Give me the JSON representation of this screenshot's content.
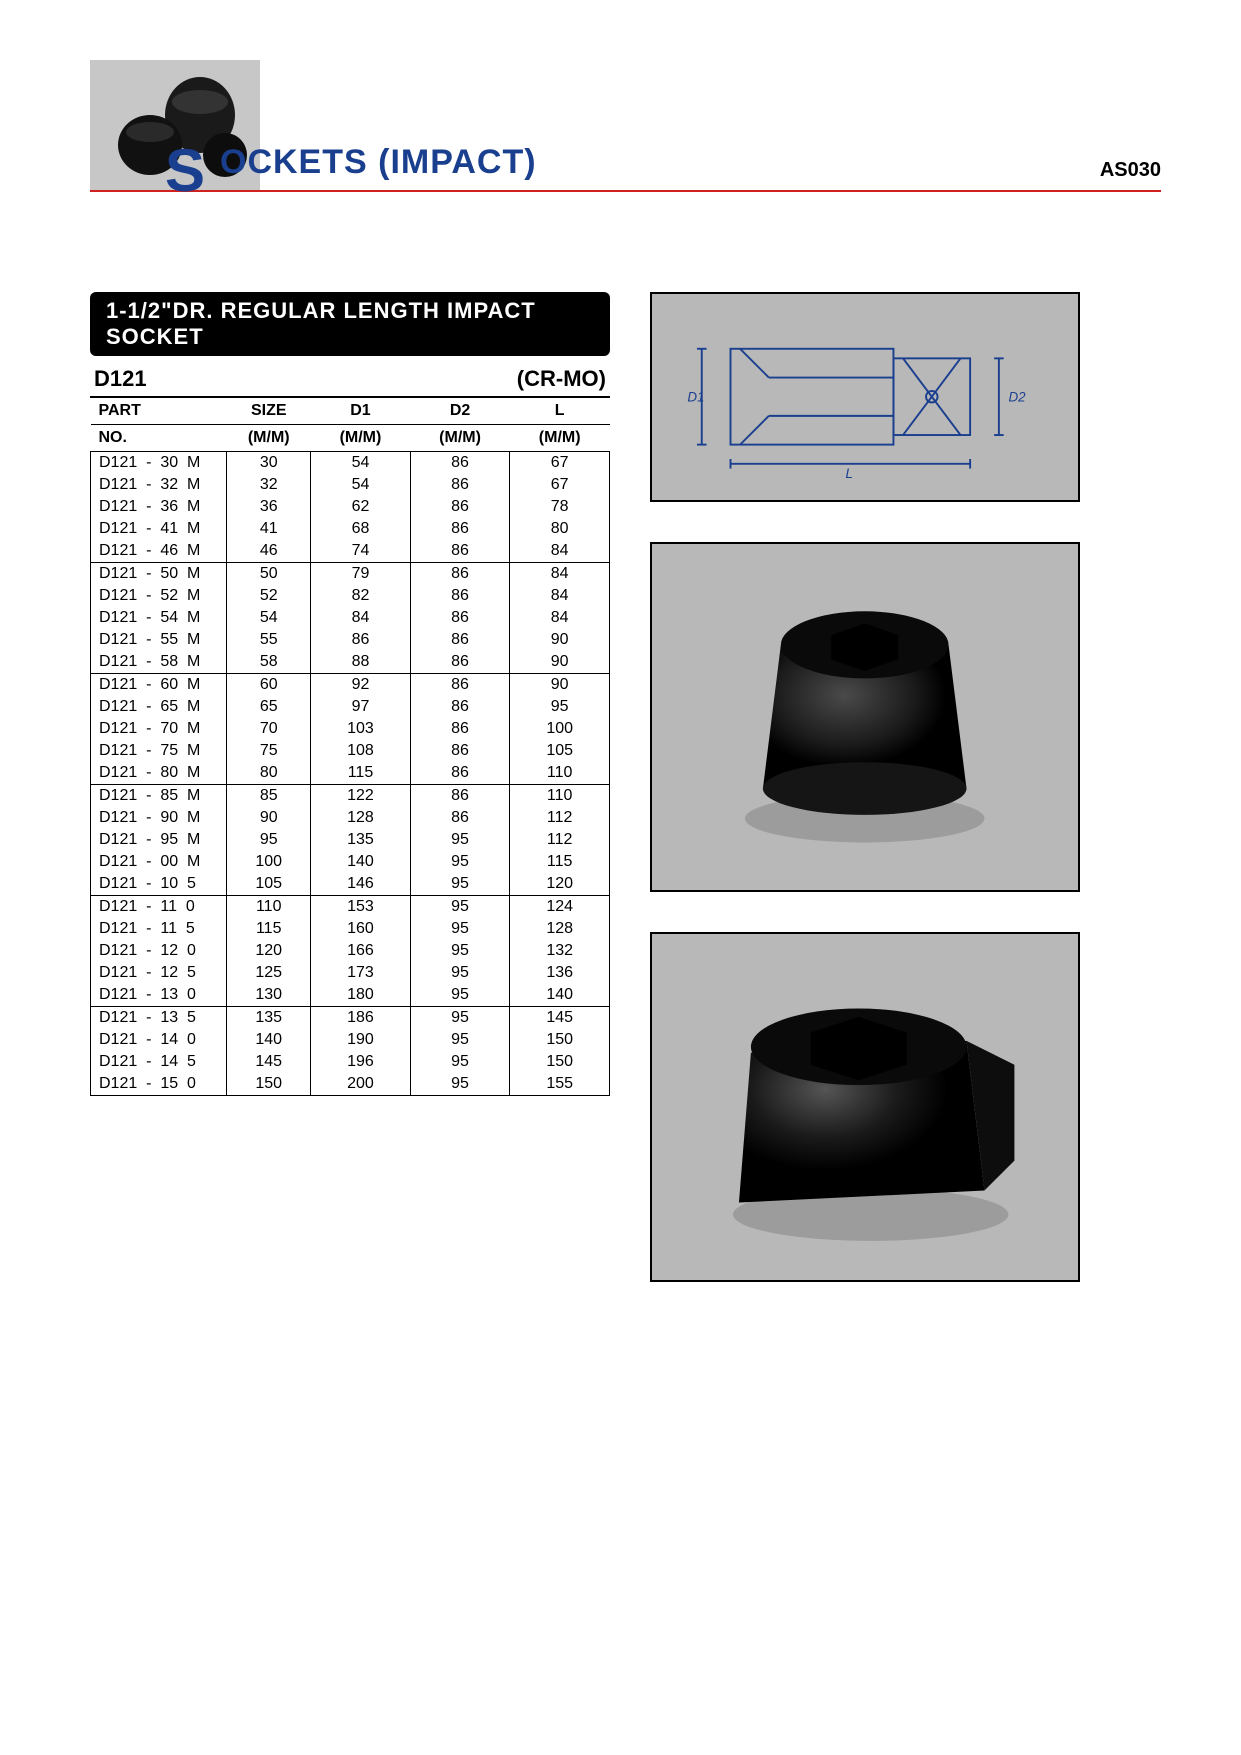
{
  "page_code": "AS030",
  "category_title": "OCKETS (IMPACT)",
  "category_prefix": "S",
  "section_title": "1-1/2\"DR. REGULAR LENGTH IMPACT SOCKET",
  "model_code": "D121",
  "material": "(CR-MO)",
  "colors": {
    "accent_red": "#d02020",
    "brand_blue": "#1a3f8f",
    "figure_bg": "#b8b8b8",
    "logo_bg": "#c7c7c7",
    "text": "#000000",
    "bg": "#ffffff"
  },
  "diagram_labels": {
    "d1": "D1",
    "d2": "D2",
    "l": "L"
  },
  "table": {
    "columns": [
      {
        "key": "part",
        "label1": "PART",
        "label2": "NO."
      },
      {
        "key": "size",
        "label1": "SIZE",
        "label2": "(M/M)"
      },
      {
        "key": "d1",
        "label1": "D1",
        "label2": "(M/M)"
      },
      {
        "key": "d2",
        "label1": "D2",
        "label2": "(M/M)"
      },
      {
        "key": "l",
        "label1": "L",
        "label2": "(M/M)"
      }
    ],
    "group_size": 5,
    "rows": [
      {
        "part": "D121  -  30  M",
        "size": 30,
        "d1": 54,
        "d2": 86,
        "l": 67
      },
      {
        "part": "D121  -  32  M",
        "size": 32,
        "d1": 54,
        "d2": 86,
        "l": 67
      },
      {
        "part": "D121  -  36  M",
        "size": 36,
        "d1": 62,
        "d2": 86,
        "l": 78
      },
      {
        "part": "D121  -  41  M",
        "size": 41,
        "d1": 68,
        "d2": 86,
        "l": 80
      },
      {
        "part": "D121  -  46  M",
        "size": 46,
        "d1": 74,
        "d2": 86,
        "l": 84
      },
      {
        "part": "D121  -  50  M",
        "size": 50,
        "d1": 79,
        "d2": 86,
        "l": 84
      },
      {
        "part": "D121  -  52  M",
        "size": 52,
        "d1": 82,
        "d2": 86,
        "l": 84
      },
      {
        "part": "D121  -  54  M",
        "size": 54,
        "d1": 84,
        "d2": 86,
        "l": 84
      },
      {
        "part": "D121  -  55  M",
        "size": 55,
        "d1": 86,
        "d2": 86,
        "l": 90
      },
      {
        "part": "D121  -  58  M",
        "size": 58,
        "d1": 88,
        "d2": 86,
        "l": 90
      },
      {
        "part": "D121  -  60  M",
        "size": 60,
        "d1": 92,
        "d2": 86,
        "l": 90
      },
      {
        "part": "D121  -  65  M",
        "size": 65,
        "d1": 97,
        "d2": 86,
        "l": 95
      },
      {
        "part": "D121  -  70  M",
        "size": 70,
        "d1": 103,
        "d2": 86,
        "l": 100
      },
      {
        "part": "D121  -  75  M",
        "size": 75,
        "d1": 108,
        "d2": 86,
        "l": 105
      },
      {
        "part": "D121  -  80  M",
        "size": 80,
        "d1": 115,
        "d2": 86,
        "l": 110
      },
      {
        "part": "D121  -  85  M",
        "size": 85,
        "d1": 122,
        "d2": 86,
        "l": 110
      },
      {
        "part": "D121  -  90  M",
        "size": 90,
        "d1": 128,
        "d2": 86,
        "l": 112
      },
      {
        "part": "D121  -  95  M",
        "size": 95,
        "d1": 135,
        "d2": 95,
        "l": 112
      },
      {
        "part": "D121  -  00  M",
        "size": 100,
        "d1": 140,
        "d2": 95,
        "l": 115
      },
      {
        "part": "D121  -  10  5",
        "size": 105,
        "d1": 146,
        "d2": 95,
        "l": 120
      },
      {
        "part": "D121  -  11  0",
        "size": 110,
        "d1": 153,
        "d2": 95,
        "l": 124
      },
      {
        "part": "D121  -  11  5",
        "size": 115,
        "d1": 160,
        "d2": 95,
        "l": 128
      },
      {
        "part": "D121  -  12  0",
        "size": 120,
        "d1": 166,
        "d2": 95,
        "l": 132
      },
      {
        "part": "D121  -  12  5",
        "size": 125,
        "d1": 173,
        "d2": 95,
        "l": 136
      },
      {
        "part": "D121  -  13  0",
        "size": 130,
        "d1": 180,
        "d2": 95,
        "l": 140
      },
      {
        "part": "D121  -  13  5",
        "size": 135,
        "d1": 186,
        "d2": 95,
        "l": 145
      },
      {
        "part": "D121  -  14  0",
        "size": 140,
        "d1": 190,
        "d2": 95,
        "l": 150
      },
      {
        "part": "D121  -  14  5",
        "size": 145,
        "d1": 196,
        "d2": 95,
        "l": 150
      },
      {
        "part": "D121  -  15  0",
        "size": 150,
        "d1": 200,
        "d2": 95,
        "l": 155
      }
    ]
  }
}
